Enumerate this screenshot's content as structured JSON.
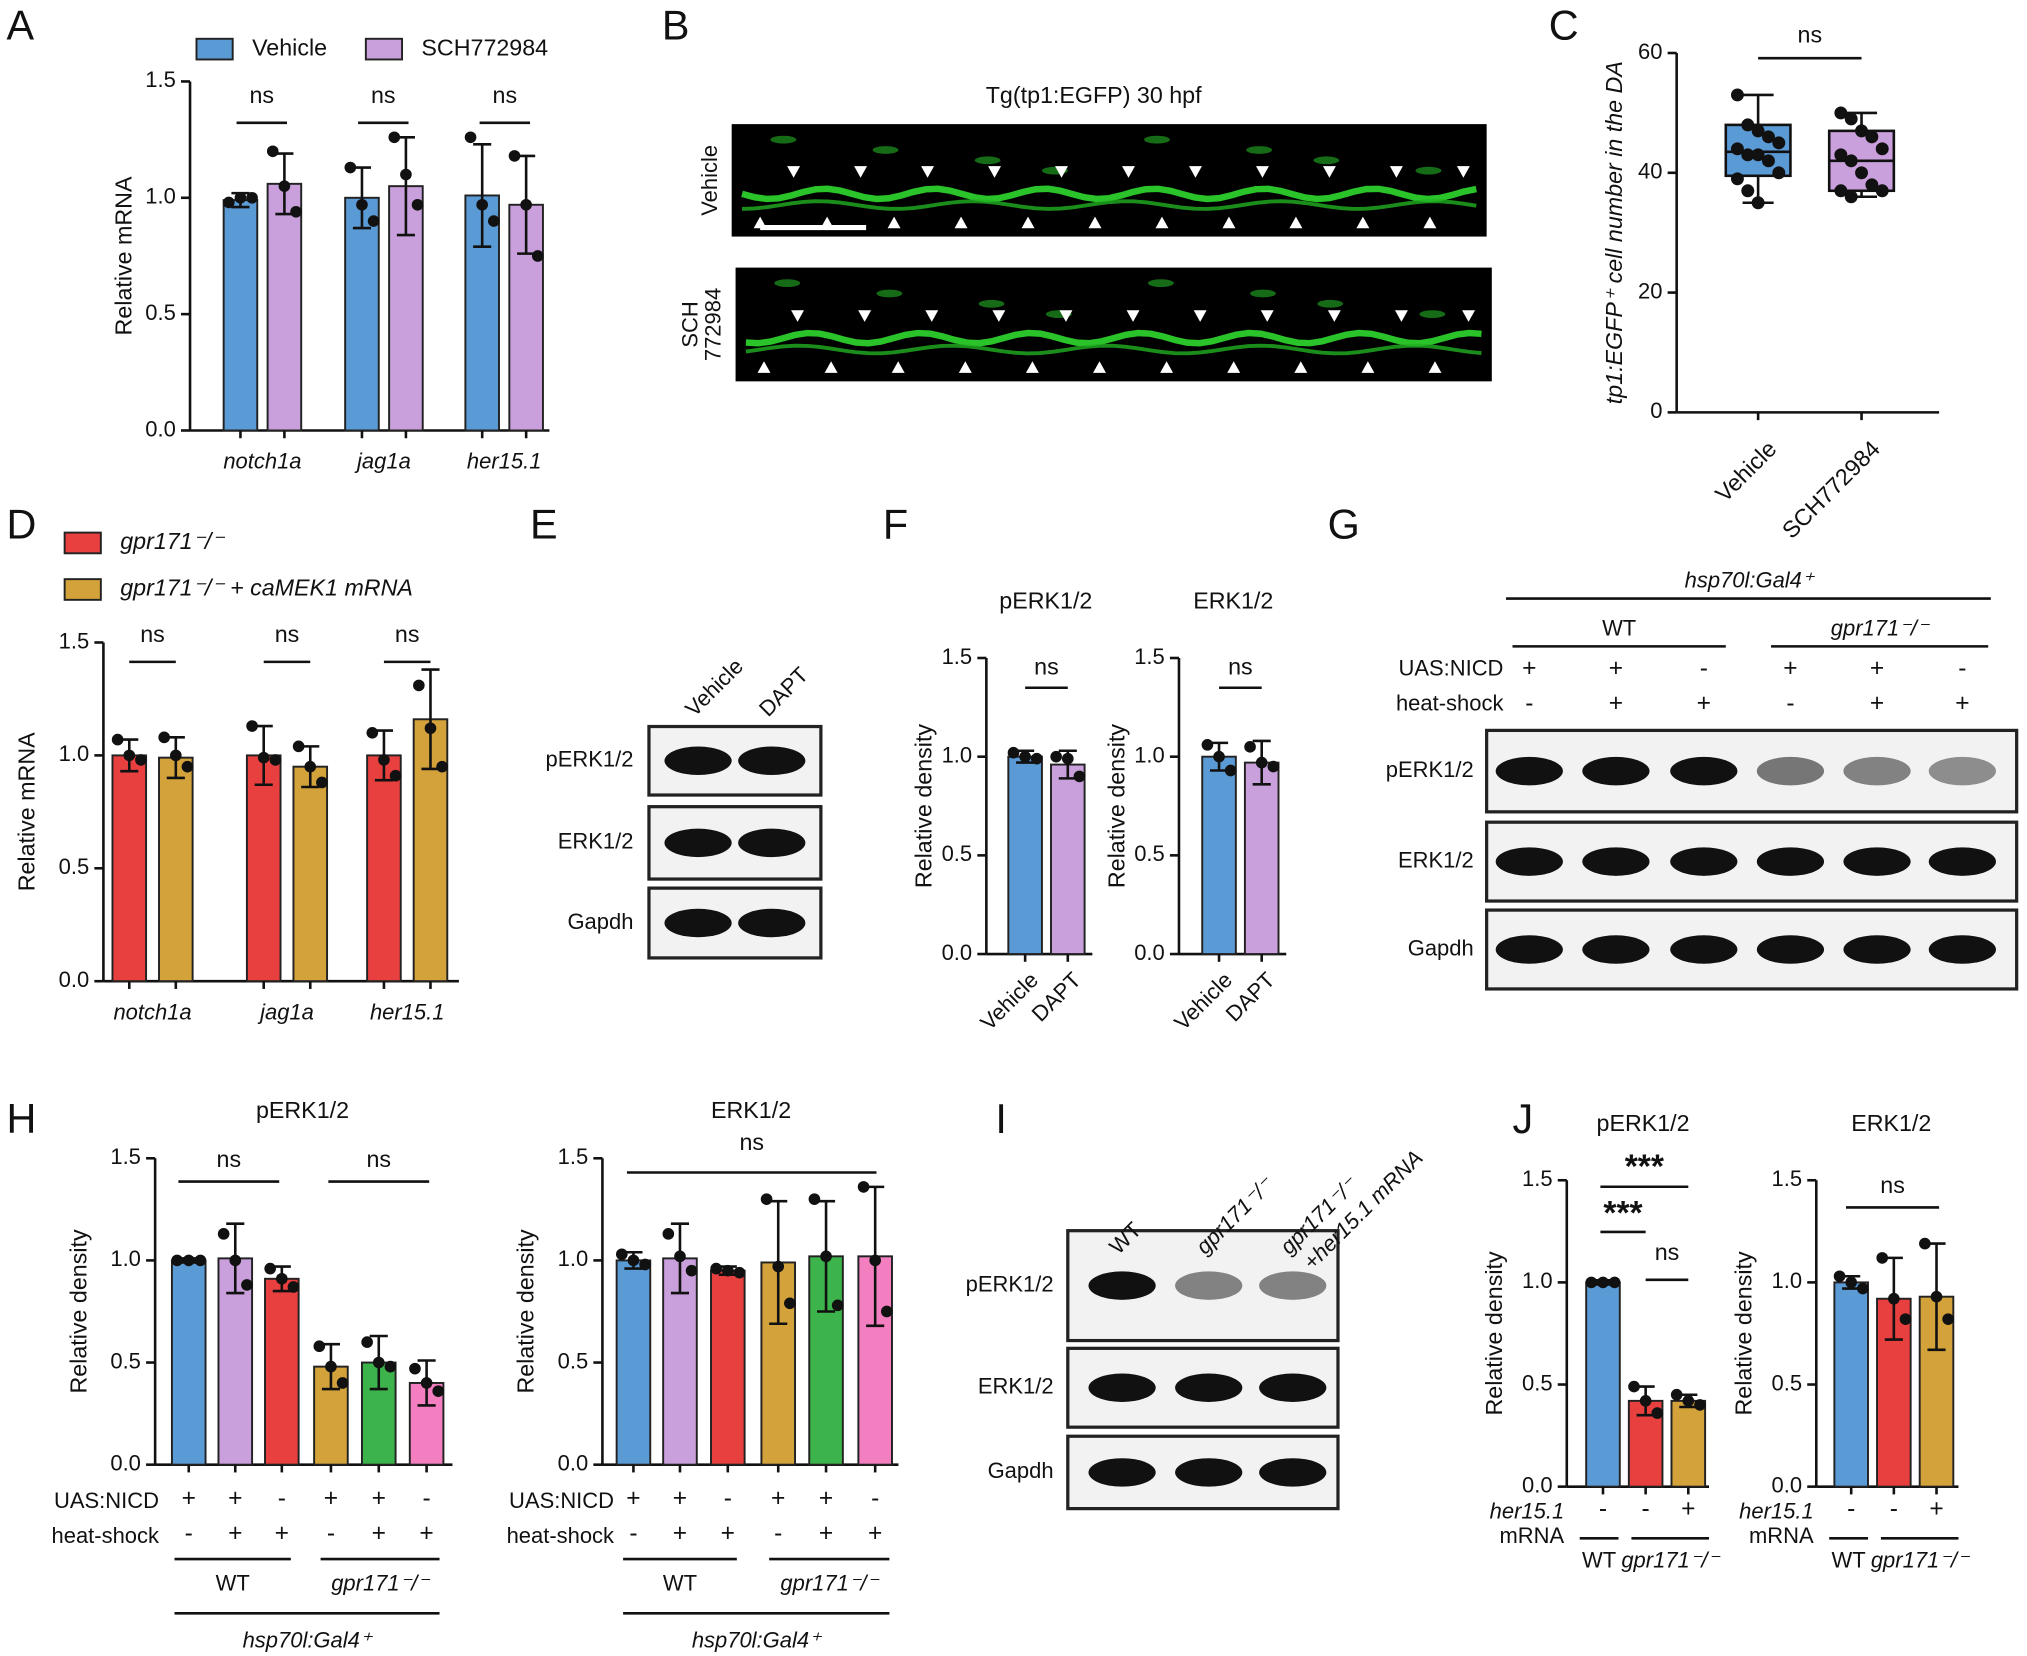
{
  "panels": [
    "A",
    "B",
    "C",
    "D",
    "E",
    "F",
    "G",
    "H",
    "I",
    "J"
  ],
  "image": {
    "title": "Tg(tp1:EGFP) 30 hpf",
    "rows": [
      [
        "Vehicle"
      ],
      [
        "SCH",
        "772984"
      ]
    ]
  },
  "blots": [
    {
      "lanes": [
        [
          "Vehicle"
        ],
        [
          "DAPT"
        ]
      ],
      "rows": [
        "pERK1/2",
        "ERK1/2",
        "Gapdh"
      ]
    },
    {
      "header": "hsp70l:Gal4⁺",
      "groups": [
        "WT",
        "gpr171⁻/⁻"
      ],
      "conditions": [
        {
          "label": "UAS:NICD",
          "signs": [
            "+",
            "+",
            "-",
            "+",
            "+",
            "-"
          ]
        },
        {
          "label": "heat-shock",
          "signs": [
            "-",
            "+",
            "+",
            "-",
            "+",
            "+"
          ]
        }
      ],
      "rows": [
        "pERK1/2",
        "ERK1/2",
        "Gapdh"
      ]
    },
    {
      "lanes": [
        [
          "WT"
        ],
        [
          "gpr171⁻/⁻"
        ],
        [
          "gpr171⁻/⁻",
          "+her15.1 mRNA"
        ]
      ],
      "rows": [
        "pERK1/2",
        "ERK1/2",
        "Gapdh"
      ]
    }
  ],
  "chart_data": [
    {
      "type": "bar",
      "y_label": "Relative mRNA",
      "categories": [
        "notch1a",
        "jag1a",
        "her15.1"
      ],
      "series": [
        {
          "name": "Vehicle",
          "color": "#5b9bd5",
          "values": [
            0.99,
            1.0,
            1.01
          ],
          "errors": [
            0.03,
            0.13,
            0.22
          ],
          "points": [
            [
              0.98,
              1.0,
              1.0
            ],
            [
              1.13,
              0.97,
              0.9
            ],
            [
              1.26,
              0.97,
              0.9
            ]
          ]
        },
        {
          "name": "SCH772984",
          "color": "#c9a0dc",
          "values": [
            1.06,
            1.05,
            0.97
          ],
          "errors": [
            0.13,
            0.21,
            0.21
          ],
          "points": [
            [
              1.2,
              1.05,
              0.94
            ],
            [
              1.26,
              1.1,
              0.97
            ],
            [
              1.18,
              0.97,
              0.75
            ]
          ]
        }
      ],
      "ylim": [
        0,
        1.5
      ],
      "yticks": [
        {
          "value": 0,
          "label": "0.0"
        },
        0.5,
        {
          "value": 1,
          "label": "1.0"
        },
        1.5
      ],
      "annotations": [
        "ns",
        "ns",
        "ns"
      ]
    },
    {
      "type": "box",
      "y_label": "tp1:EGFP⁺ cell number in the DA",
      "categories": [
        "Vehicle",
        "SCH772984"
      ],
      "colors": [
        "#5b9bd5",
        "#c9a0dc"
      ],
      "boxes": [
        {
          "min": 35,
          "q1": 39.5,
          "median": 43.5,
          "q3": 48,
          "max": 53
        },
        {
          "min": 36,
          "q1": 37,
          "median": 42,
          "q3": 47,
          "max": 50
        }
      ],
      "points": [
        [
          53,
          48,
          47,
          46,
          45,
          44,
          43,
          43,
          42,
          40,
          39,
          37,
          35
        ],
        [
          50,
          49,
          47,
          46,
          44,
          43,
          42,
          40,
          38,
          37,
          37,
          36
        ]
      ],
      "ylim": [
        0,
        60
      ],
      "yticks": [
        0,
        20,
        40,
        60
      ],
      "annotations": [
        "ns"
      ]
    },
    {
      "type": "bar",
      "y_label": "Relative mRNA",
      "categories": [
        "notch1a",
        "jag1a",
        "her15.1"
      ],
      "series": [
        {
          "name": "gpr171⁻/⁻",
          "color": "#e8403f",
          "values": [
            1.0,
            1.0,
            1.0
          ],
          "errors": [
            0.07,
            0.13,
            0.11
          ],
          "points": [
            [
              1.07,
              1.0,
              0.98
            ],
            [
              1.13,
              0.99,
              0.98
            ],
            [
              1.1,
              0.98,
              0.91
            ]
          ]
        },
        {
          "name": "gpr171⁻/⁻ + caMEK1 mRNA",
          "color": "#d4a23a",
          "values": [
            0.99,
            0.95,
            1.16
          ],
          "errors": [
            0.09,
            0.09,
            0.22
          ],
          "points": [
            [
              1.08,
              1.0,
              0.95
            ],
            [
              1.04,
              0.95,
              0.88
            ],
            [
              1.31,
              1.12,
              0.95
            ]
          ]
        }
      ],
      "ylim": [
        0,
        1.5
      ],
      "yticks": [
        {
          "value": 0,
          "label": "0.0"
        },
        0.5,
        {
          "value": 1,
          "label": "1.0"
        },
        1.5
      ],
      "annotations": [
        "ns",
        "ns",
        "ns"
      ]
    },
    {
      "type": "bar",
      "title": "pERK1/2",
      "y_label": "Relative density",
      "categories": [
        "Vehicle",
        "DAPT"
      ],
      "colors": [
        "#5b9bd5",
        "#c9a0dc"
      ],
      "values": [
        1.0,
        0.96
      ],
      "errors": [
        0.03,
        0.07
      ],
      "points": [
        [
          1.02,
          1.0,
          0.99
        ],
        [
          1.0,
          0.99,
          0.9
        ]
      ],
      "ylim": [
        0,
        1.5
      ],
      "yticks": [
        {
          "value": 0,
          "label": "0.0"
        },
        0.5,
        {
          "value": 1,
          "label": "1.0"
        },
        1.5
      ],
      "annotations": [
        "ns"
      ]
    },
    {
      "type": "bar",
      "title": "ERK1/2",
      "y_label": "Relative density",
      "categories": [
        "Vehicle",
        "DAPT"
      ],
      "colors": [
        "#5b9bd5",
        "#c9a0dc"
      ],
      "values": [
        1.0,
        0.97
      ],
      "errors": [
        0.07,
        0.11
      ],
      "points": [
        [
          1.06,
          1.0,
          0.93
        ],
        [
          1.05,
          0.97,
          0.95
        ]
      ],
      "ylim": [
        0,
        1.5
      ],
      "yticks": [
        {
          "value": 0,
          "label": "0.0"
        },
        0.5,
        {
          "value": 1,
          "label": "1.0"
        },
        1.5
      ],
      "annotations": [
        "ns"
      ]
    },
    {
      "type": "bar",
      "title": "pERK1/2",
      "y_label": "Relative density",
      "colors": [
        "#5b9bd5",
        "#c9a0dc",
        "#e8403f",
        "#d4a23a",
        "#3cb44b",
        "#f47fc0"
      ],
      "values": [
        1.0,
        1.01,
        0.91,
        0.48,
        0.5,
        0.4
      ],
      "errors": [
        0.01,
        0.17,
        0.06,
        0.11,
        0.13,
        0.11
      ],
      "points": [
        [
          1.0,
          1.0,
          1.0
        ],
        [
          1.13,
          1.0,
          0.88
        ],
        [
          0.96,
          0.91,
          0.87
        ],
        [
          0.58,
          0.48,
          0.4
        ],
        [
          0.6,
          0.5,
          0.48
        ],
        [
          0.47,
          0.4,
          0.36
        ]
      ],
      "conditions": [
        {
          "label": "UAS:NICD",
          "signs": [
            "+",
            "+",
            "-",
            "+",
            "+",
            "-"
          ]
        },
        {
          "label": "heat-shock",
          "signs": [
            "-",
            "+",
            "+",
            "-",
            "+",
            "+"
          ]
        }
      ],
      "groups": [
        "WT",
        "gpr171⁻/⁻"
      ],
      "group_label": "hsp70l:Gal4⁺",
      "ylim": [
        0,
        1.5
      ],
      "yticks": [
        {
          "value": 0,
          "label": "0.0"
        },
        0.5,
        {
          "value": 1,
          "label": "1.0"
        },
        1.5
      ],
      "annotations": [
        "ns",
        "ns"
      ]
    },
    {
      "type": "bar",
      "title": "ERK1/2",
      "y_label": "Relative density",
      "colors": [
        "#5b9bd5",
        "#c9a0dc",
        "#e8403f",
        "#d4a23a",
        "#3cb44b",
        "#f47fc0"
      ],
      "values": [
        1.0,
        1.01,
        0.95,
        0.99,
        1.02,
        1.02
      ],
      "errors": [
        0.04,
        0.17,
        0.02,
        0.3,
        0.27,
        0.34
      ],
      "points": [
        [
          1.03,
          1.0,
          0.98
        ],
        [
          1.13,
          1.02,
          0.95
        ],
        [
          0.96,
          0.95,
          0.94
        ],
        [
          1.3,
          0.97,
          0.79
        ],
        [
          1.3,
          1.02,
          0.78
        ],
        [
          1.36,
          1.0,
          0.75
        ]
      ],
      "conditions": [
        {
          "label": "UAS:NICD",
          "signs": [
            "+",
            "+",
            "-",
            "+",
            "+",
            "-"
          ]
        },
        {
          "label": "heat-shock",
          "signs": [
            "-",
            "+",
            "+",
            "-",
            "+",
            "+"
          ]
        }
      ],
      "groups": [
        "WT",
        "gpr171⁻/⁻"
      ],
      "group_label": "hsp70l:Gal4⁺",
      "ylim": [
        0,
        1.5
      ],
      "yticks": [
        {
          "value": 0,
          "label": "0.0"
        },
        0.5,
        {
          "value": 1,
          "label": "1.0"
        },
        1.5
      ],
      "annotations": [
        "ns"
      ]
    },
    {
      "type": "bar",
      "title": "pERK1/2",
      "y_label": "Relative density",
      "colors": [
        "#5b9bd5",
        "#e8403f",
        "#d4a23a"
      ],
      "values": [
        1.0,
        0.42,
        0.42
      ],
      "errors": [
        0.01,
        0.07,
        0.03
      ],
      "points": [
        [
          1.0,
          1.0,
          1.0
        ],
        [
          0.49,
          0.42,
          0.36
        ],
        [
          0.45,
          0.42,
          0.4
        ]
      ],
      "conditions": [
        {
          "label": "her15.1",
          "label2": "mRNA",
          "signs": [
            "-",
            "-",
            "+"
          ]
        }
      ],
      "groups": [
        "WT",
        "gpr171⁻/⁻"
      ],
      "ylim": [
        0,
        1.5
      ],
      "yticks": [
        {
          "value": 0,
          "label": "0.0"
        },
        0.5,
        {
          "value": 1,
          "label": "1.0"
        },
        1.5
      ],
      "annotations": [
        "***",
        "***",
        "ns"
      ]
    },
    {
      "type": "bar",
      "title": "ERK1/2",
      "y_label": "Relative density",
      "colors": [
        "#5b9bd5",
        "#e8403f",
        "#d4a23a"
      ],
      "values": [
        1.0,
        0.92,
        0.93
      ],
      "errors": [
        0.03,
        0.2,
        0.26
      ],
      "points": [
        [
          1.03,
          1.0,
          0.97
        ],
        [
          1.12,
          0.92,
          0.82
        ],
        [
          1.19,
          0.93,
          0.82
        ]
      ],
      "conditions": [
        {
          "label": "her15.1",
          "label2": "mRNA",
          "signs": [
            "-",
            "-",
            "+"
          ]
        }
      ],
      "groups": [
        "WT",
        "gpr171⁻/⁻"
      ],
      "ylim": [
        0,
        1.5
      ],
      "yticks": [
        {
          "value": 0,
          "label": "0.0"
        },
        0.5,
        {
          "value": 1,
          "label": "1.0"
        },
        1.5
      ],
      "annotations": [
        "ns"
      ]
    }
  ]
}
